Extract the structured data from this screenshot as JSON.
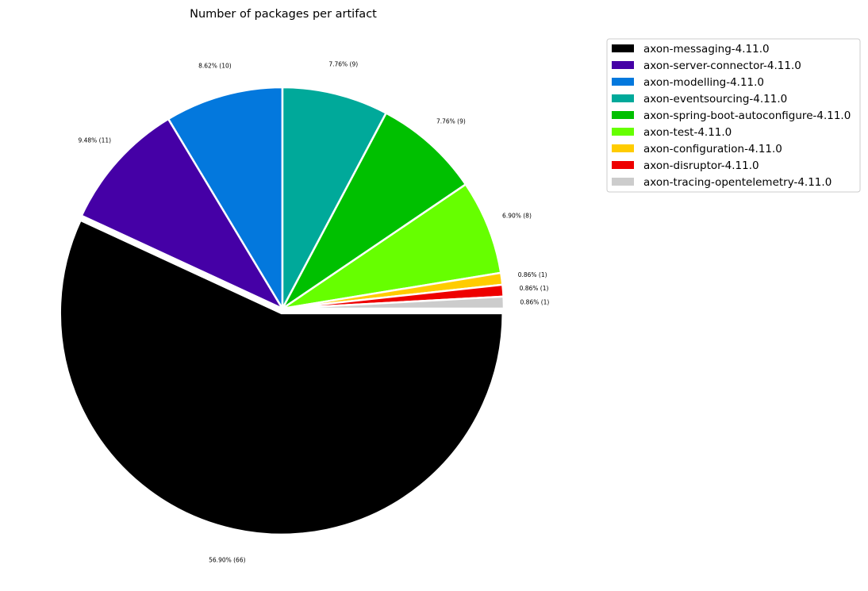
{
  "chart_data": {
    "type": "pie",
    "title": "Number of packages per artifact",
    "legend_position": "top-right",
    "slices": [
      {
        "name": "axon-messaging-4.11.0",
        "value": 66,
        "label": "56.90% (66)",
        "color": "#000000",
        "exploded": true
      },
      {
        "name": "axon-server-connector-4.11.0",
        "value": 11,
        "label": "9.48% (11)",
        "color": "#4500a6",
        "exploded": false
      },
      {
        "name": "axon-modelling-4.11.0",
        "value": 10,
        "label": "8.62% (10)",
        "color": "#0378dd",
        "exploded": false
      },
      {
        "name": "axon-eventsourcing-4.11.0",
        "value": 9,
        "label": "7.76% (9)",
        "color": "#00a99a",
        "exploded": false
      },
      {
        "name": "axon-spring-boot-autoconfigure-4.11.0",
        "value": 9,
        "label": "7.76% (9)",
        "color": "#00c000",
        "exploded": false
      },
      {
        "name": "axon-test-4.11.0",
        "value": 8,
        "label": "6.90% (8)",
        "color": "#66ff00",
        "exploded": false
      },
      {
        "name": "axon-configuration-4.11.0",
        "value": 1,
        "label": "0.86% (1)",
        "color": "#ffcc00",
        "exploded": false
      },
      {
        "name": "axon-disruptor-4.11.0",
        "value": 1,
        "label": "0.86% (1)",
        "color": "#ee0000",
        "exploded": false
      },
      {
        "name": "axon-tracing-opentelemetry-4.11.0",
        "value": 1,
        "label": "0.86% (1)",
        "color": "#cccccc",
        "exploded": false
      }
    ]
  }
}
